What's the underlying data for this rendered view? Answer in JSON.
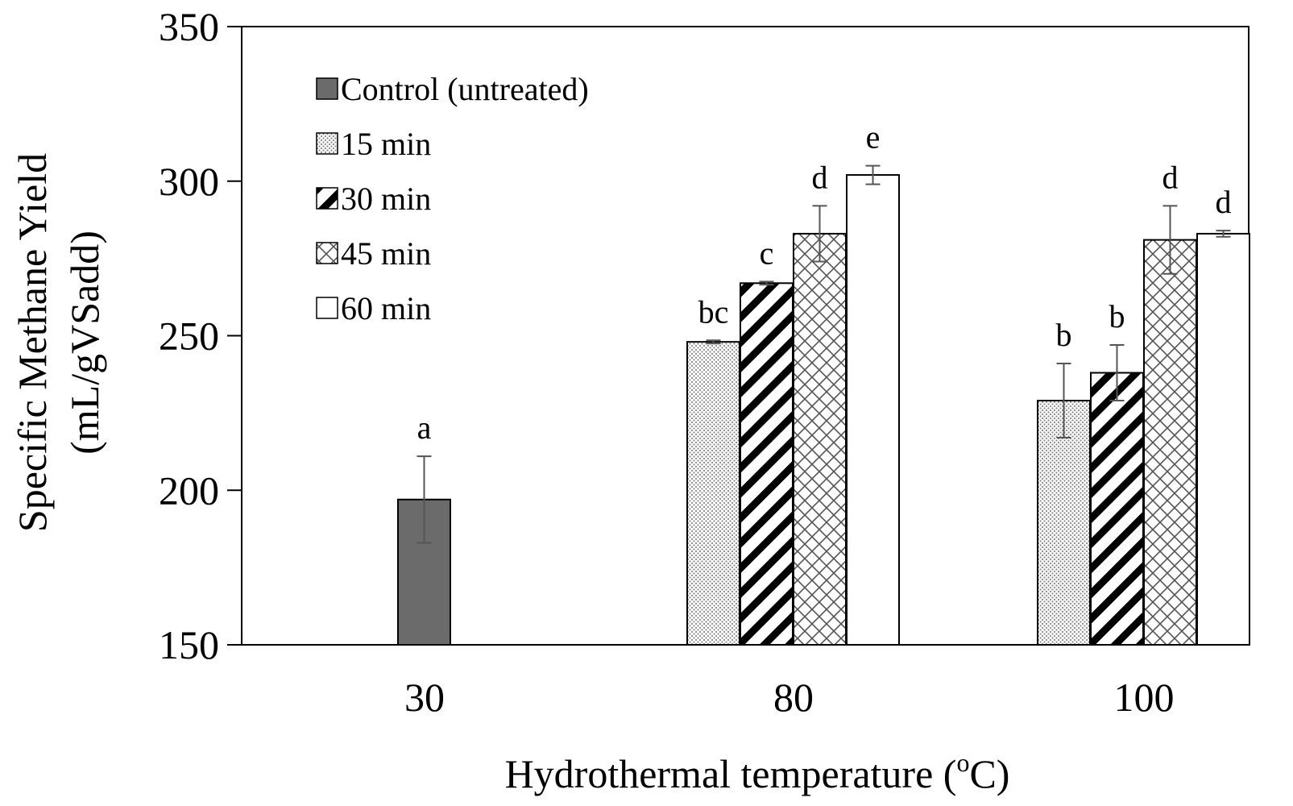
{
  "chart_data": {
    "type": "bar",
    "title": "",
    "xlabel": "Hydrothermal temperature (°C)",
    "xlabel_parts": {
      "pre": "Hydrothermal temperature (",
      "sup": "o",
      "post": "C)"
    },
    "ylabel_line1": "Specific Methane Yield",
    "ylabel_line2": "(mL/gVSadd)",
    "ylim": [
      150,
      350
    ],
    "yticks": [
      150,
      200,
      250,
      300,
      350
    ],
    "grid": false,
    "legend_position": "top-left",
    "groups": [
      {
        "category": "30",
        "bars": [
          {
            "series": "Control (untreated)",
            "value": 197,
            "error": 14,
            "label": "a"
          }
        ]
      },
      {
        "category": "80",
        "bars": [
          {
            "series": "15 min",
            "value": 248,
            "error": 0.5,
            "label": "bc"
          },
          {
            "series": "30 min",
            "value": 267,
            "error": 0.5,
            "label": "c"
          },
          {
            "series": "45 min",
            "value": 283,
            "error": 9,
            "label": "d"
          },
          {
            "series": "60 min",
            "value": 302,
            "error": 3,
            "label": "e"
          }
        ]
      },
      {
        "category": "100",
        "bars": [
          {
            "series": "15 min",
            "value": 229,
            "error": 12,
            "label": "b"
          },
          {
            "series": "30 min",
            "value": 238,
            "error": 9,
            "label": "b"
          },
          {
            "series": "45 min",
            "value": 281,
            "error": 11,
            "label": "d"
          },
          {
            "series": "60 min",
            "value": 283,
            "error": 1,
            "label": "d"
          }
        ]
      }
    ],
    "series": [
      {
        "name": "Control (untreated)",
        "pattern": "solid-gray"
      },
      {
        "name": "15 min",
        "pattern": "dots"
      },
      {
        "name": "30 min",
        "pattern": "diagonal-stripes"
      },
      {
        "name": "45 min",
        "pattern": "crosshatch"
      },
      {
        "name": "60 min",
        "pattern": "white"
      }
    ],
    "colors": {
      "control": "#6b6b6b",
      "dots": "#8a8a8a",
      "stroke": "#000000",
      "errorbar": "#555555"
    }
  }
}
